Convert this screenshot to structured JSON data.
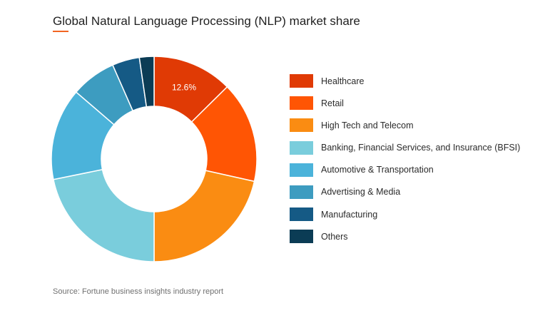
{
  "colors": {
    "accent": "#F26522",
    "label_text": "#ffffff",
    "slice_border": "#ffffff"
  },
  "source": "Source: Fortune business insights industry report",
  "chart_data": {
    "type": "pie",
    "variant": "donut",
    "title": "Global Natural Language Processing (NLP) market share",
    "unit": "%",
    "categories": [
      "Healthcare",
      "Retail",
      "High Tech and Telecom",
      "Banking, Financial Services, and Insurance (BFSI)",
      "Automotive & Transportation",
      "Advertising & Media",
      "Manufacturing",
      "Others"
    ],
    "values": [
      12.6,
      15.9,
      21.5,
      21.8,
      14.5,
      7.1,
      4.3,
      2.3
    ],
    "colors": [
      "#E03A05",
      "#FF5504",
      "#FA8C12",
      "#7ACDDC",
      "#4BB3DA",
      "#3D9CC0",
      "#155A85",
      "#0B3C55"
    ],
    "data_labels": [
      "12.6%",
      "",
      "",
      "",
      "",
      "",
      "",
      ""
    ],
    "legend_position": "right"
  }
}
